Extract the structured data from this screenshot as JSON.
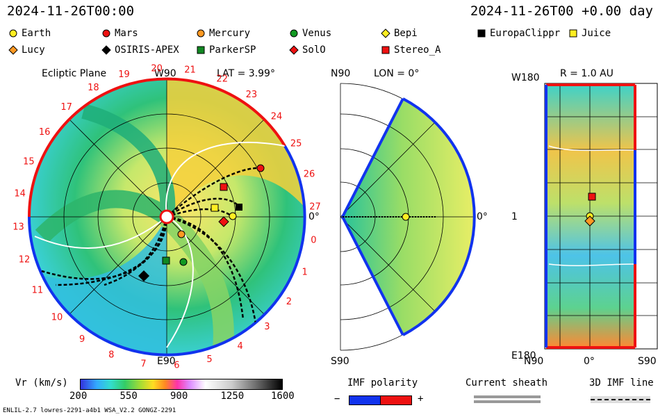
{
  "header": {
    "left_time": "2024-11-26T00:00",
    "right_time": "2024-11-26T00 +0.00 day"
  },
  "legend": [
    {
      "name": "Earth",
      "shape": "circle",
      "color": "#ffee22"
    },
    {
      "name": "Mars",
      "shape": "circle",
      "color": "#ee1111"
    },
    {
      "name": "Mercury",
      "shape": "circle",
      "color": "#ff9922"
    },
    {
      "name": "Venus",
      "shape": "circle",
      "color": "#119922"
    },
    {
      "name": "Bepi",
      "shape": "diamond",
      "color": "#ffee22"
    },
    {
      "name": "EuropaClippr",
      "shape": "square",
      "color": "#000000"
    },
    {
      "name": "Juice",
      "shape": "square",
      "color": "#ffee22"
    },
    {
      "name": "Lucy",
      "shape": "diamond",
      "color": "#ff9922"
    },
    {
      "name": "OSIRIS-APEX",
      "shape": "diamond",
      "color": "#000000"
    },
    {
      "name": "ParkerSP",
      "shape": "square",
      "color": "#118822"
    },
    {
      "name": "SolO",
      "shape": "diamond",
      "color": "#ee1111"
    },
    {
      "name": "Stereo_A",
      "shape": "square",
      "color": "#ee1111"
    }
  ],
  "panels": {
    "ecliptic": {
      "title": "Ecliptic Plane",
      "lat": "LAT = 3.99°",
      "top": "W90",
      "bottom": "E90",
      "right": "0°",
      "carrington": [
        "20",
        "21",
        "22",
        "23",
        "24",
        "25",
        "26",
        "27",
        "0",
        "1",
        "2",
        "3",
        "4",
        "5",
        "6",
        "7",
        "8",
        "9",
        "10",
        "11",
        "12",
        "13",
        "14",
        "15",
        "16",
        "17",
        "18",
        "19"
      ]
    },
    "meridional": {
      "lon": "LON = 0°",
      "top": "N90",
      "bottom": "S90",
      "right": "0°"
    },
    "radial": {
      "title": "R = 1.0 AU",
      "top": "W180",
      "middle": "1",
      "bottom": "E180",
      "x_left": "N90",
      "x_mid": "0°",
      "x_right": "S90"
    }
  },
  "colorbar": {
    "label": "Vr (km/s)",
    "ticks": [
      "200",
      "550",
      "900",
      "1250",
      "1600"
    ]
  },
  "imf": {
    "label": "IMF polarity",
    "minus": "−",
    "plus": "+"
  },
  "sheath": {
    "label": "Current sheath"
  },
  "imf3d": {
    "label": "3D IMF line"
  },
  "footer": {
    "left": "ENLIL-2.7 lowres-2291-a4b1 WSA_V2.2 GONGZ-2291"
  },
  "colors": {
    "pos": "#ee1111",
    "neg": "#1133ee"
  }
}
